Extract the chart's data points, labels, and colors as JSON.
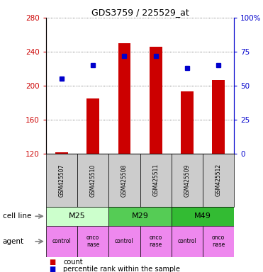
{
  "title": "GDS3759 / 225529_at",
  "samples": [
    "GSM425507",
    "GSM425510",
    "GSM425508",
    "GSM425511",
    "GSM425509",
    "GSM425512"
  ],
  "counts": [
    122,
    185,
    250,
    246,
    193,
    207
  ],
  "percentiles": [
    55,
    65,
    72,
    72,
    63,
    65
  ],
  "ylim_left": [
    120,
    280
  ],
  "ylim_right": [
    0,
    100
  ],
  "yticks_left": [
    120,
    160,
    200,
    240,
    280
  ],
  "yticks_right": [
    0,
    25,
    50,
    75,
    100
  ],
  "ytick_labels_right": [
    "0",
    "25",
    "50",
    "75",
    "100%"
  ],
  "bar_color": "#cc0000",
  "dot_color": "#0000cc",
  "cell_lines": [
    {
      "label": "M25",
      "cols": [
        0,
        1
      ],
      "color": "#ccffcc"
    },
    {
      "label": "M29",
      "cols": [
        2,
        3
      ],
      "color": "#55cc55"
    },
    {
      "label": "M49",
      "cols": [
        4,
        5
      ],
      "color": "#33bb33"
    }
  ],
  "agent_color": "#ee88ee",
  "sample_box_color": "#cccccc",
  "grid_color": "#555555",
  "left_axis_color": "#cc0000",
  "right_axis_color": "#0000cc",
  "legend_count_label": "count",
  "legend_pct_label": "percentile rank within the sample",
  "cell_line_label": "cell line",
  "agent_label": "agent"
}
